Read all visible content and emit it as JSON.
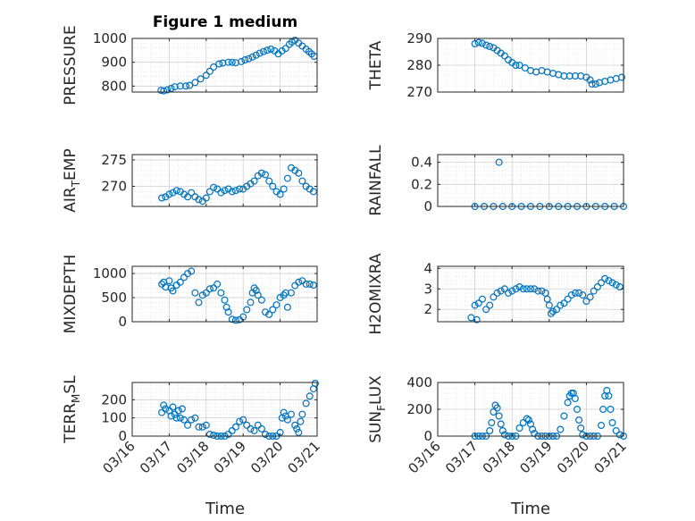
{
  "figure": {
    "title": "Figure 1 medium",
    "xlabel": "Time",
    "xticks": [
      "03/16",
      "03/17",
      "03/18",
      "03/19",
      "03/20",
      "03/21"
    ],
    "marker_color": "#0072BD"
  },
  "chart_data": [
    {
      "type": "scatter",
      "ylabel_main": "PRESSURE",
      "ylabel_sub": "",
      "xlim": [
        16,
        21
      ],
      "ylim": [
        775,
        1000
      ],
      "yticks": [
        800,
        900,
        1000
      ],
      "x": [
        16.78,
        16.85,
        16.95,
        17.05,
        17.15,
        17.3,
        17.45,
        17.55,
        17.7,
        17.85,
        18.0,
        18.1,
        18.2,
        18.35,
        18.45,
        18.6,
        18.7,
        18.8,
        18.95,
        19.05,
        19.15,
        19.25,
        19.35,
        19.45,
        19.55,
        19.65,
        19.75,
        19.85,
        19.95,
        20.05,
        20.15,
        20.25,
        20.32,
        20.4,
        20.5,
        20.6,
        20.7,
        20.78,
        20.85,
        20.92
      ],
      "y": [
        782,
        780,
        784,
        790,
        797,
        800,
        800,
        803,
        815,
        830,
        845,
        862,
        880,
        893,
        897,
        900,
        900,
        898,
        903,
        910,
        915,
        922,
        930,
        938,
        945,
        950,
        955,
        948,
        935,
        948,
        958,
        975,
        985,
        992,
        980,
        968,
        955,
        945,
        935,
        925
      ]
    },
    {
      "type": "scatter",
      "ylabel_main": "THETA",
      "ylabel_sub": "",
      "xlim": [
        16,
        21
      ],
      "ylim": [
        270,
        290
      ],
      "yticks": [
        270,
        280,
        290
      ],
      "x": [
        17.0,
        17.1,
        17.2,
        17.3,
        17.4,
        17.5,
        17.6,
        17.7,
        17.8,
        17.9,
        18.0,
        18.1,
        18.2,
        18.35,
        18.5,
        18.65,
        18.8,
        18.95,
        19.1,
        19.25,
        19.4,
        19.55,
        19.7,
        19.85,
        20.0,
        20.1,
        20.15,
        20.25,
        20.35,
        20.5,
        20.65,
        20.8,
        20.95
      ],
      "y": [
        288,
        288.5,
        288.2,
        287.5,
        287,
        286.5,
        285.5,
        284.5,
        283.5,
        282,
        281,
        280,
        280,
        279,
        278,
        277.5,
        278,
        277.5,
        277,
        276.5,
        276,
        276,
        276,
        276,
        275.5,
        274.5,
        273,
        273,
        273.5,
        274,
        274.5,
        275,
        275.5
      ]
    },
    {
      "type": "scatter",
      "ylabel_main": "AIR",
      "ylabel_sub": "T",
      "ylabel_tail": "EMP",
      "xlim": [
        16,
        21
      ],
      "ylim": [
        266.2,
        276
      ],
      "yticks": [
        270,
        275
      ],
      "x": [
        16.8,
        16.9,
        17.0,
        17.1,
        17.2,
        17.3,
        17.4,
        17.5,
        17.6,
        17.7,
        17.8,
        17.9,
        18.0,
        18.1,
        18.2,
        18.3,
        18.4,
        18.5,
        18.6,
        18.7,
        18.8,
        18.9,
        19.0,
        19.1,
        19.2,
        19.3,
        19.4,
        19.5,
        19.6,
        19.7,
        19.8,
        19.9,
        20.0,
        20.1,
        20.2,
        20.3,
        20.4,
        20.5,
        20.6,
        20.7,
        20.8,
        20.9
      ],
      "y": [
        267.8,
        268.0,
        268.5,
        268.8,
        269.2,
        269.0,
        268.5,
        268.0,
        268.8,
        268.0,
        267.5,
        267.2,
        267.8,
        269.0,
        269.8,
        269.5,
        268.8,
        269.2,
        269.5,
        269.0,
        269.2,
        269.5,
        269.5,
        270.0,
        270.5,
        271.0,
        272.0,
        272.5,
        272.2,
        271.0,
        270.0,
        269.0,
        268.5,
        269.5,
        271.5,
        273.5,
        273.0,
        272.5,
        271.0,
        270.0,
        269.5,
        269.0
      ]
    },
    {
      "type": "scatter",
      "ylabel_main": "RAINFALL",
      "ylabel_sub": "",
      "xlim": [
        16,
        21
      ],
      "ylim": [
        0,
        0.47
      ],
      "yticks": [
        0,
        0.2,
        0.4
      ],
      "x": [
        17.0,
        17.25,
        17.5,
        17.75,
        18.0,
        18.25,
        18.5,
        18.75,
        19.0,
        19.25,
        19.5,
        19.75,
        20.0,
        20.25,
        20.5,
        20.75,
        21.0,
        17.65
      ],
      "y": [
        0,
        0,
        0,
        0,
        0,
        0,
        0,
        0,
        0,
        0,
        0,
        0,
        0,
        0,
        0,
        0,
        0,
        0.4
      ]
    },
    {
      "type": "scatter",
      "ylabel_main": "MIXDEPTH",
      "ylabel_sub": "",
      "xlim": [
        16,
        21
      ],
      "ylim": [
        0,
        1150
      ],
      "yticks": [
        0,
        500,
        1000
      ],
      "x": [
        16.8,
        16.85,
        16.9,
        17.0,
        17.05,
        17.1,
        17.2,
        17.3,
        17.4,
        17.5,
        17.6,
        17.7,
        17.8,
        17.9,
        18.0,
        18.1,
        18.2,
        18.3,
        18.4,
        18.5,
        18.55,
        18.6,
        18.7,
        18.8,
        18.9,
        19.0,
        19.1,
        19.2,
        19.25,
        19.3,
        19.35,
        19.4,
        19.5,
        19.6,
        19.7,
        19.8,
        19.9,
        20.0,
        20.1,
        20.15,
        20.2,
        20.3,
        20.4,
        20.5,
        20.6,
        20.7,
        20.8,
        20.9
      ],
      "y": [
        780,
        820,
        720,
        850,
        700,
        640,
        760,
        820,
        920,
        1000,
        1050,
        600,
        400,
        550,
        600,
        680,
        700,
        780,
        600,
        450,
        300,
        200,
        50,
        30,
        40,
        100,
        250,
        400,
        600,
        700,
        650,
        550,
        450,
        200,
        150,
        250,
        350,
        500,
        550,
        600,
        300,
        600,
        750,
        820,
        850,
        780,
        780,
        760
      ]
    },
    {
      "type": "scatter",
      "ylabel_main": "H2OMIXRA",
      "ylabel_sub": "",
      "xlim": [
        16,
        21
      ],
      "ylim": [
        1.4,
        4.1
      ],
      "yticks": [
        2,
        3,
        4
      ],
      "x": [
        16.9,
        17.0,
        17.05,
        17.1,
        17.2,
        17.3,
        17.4,
        17.5,
        17.6,
        17.7,
        17.8,
        17.9,
        18.0,
        18.1,
        18.2,
        18.3,
        18.4,
        18.5,
        18.6,
        18.7,
        18.8,
        18.9,
        18.95,
        19.0,
        19.05,
        19.1,
        19.2,
        19.3,
        19.4,
        19.5,
        19.6,
        19.7,
        19.8,
        19.9,
        20.0,
        20.1,
        20.2,
        20.3,
        20.4,
        20.5,
        20.6,
        20.7,
        20.8,
        20.9
      ],
      "y": [
        1.6,
        2.2,
        1.5,
        2.3,
        2.5,
        2.0,
        2.2,
        2.6,
        2.8,
        2.9,
        3.0,
        2.8,
        2.9,
        3.0,
        3.1,
        3.0,
        3.0,
        3.0,
        3.0,
        2.9,
        2.9,
        2.8,
        2.5,
        2.2,
        1.8,
        1.9,
        2.0,
        2.2,
        2.3,
        2.5,
        2.7,
        2.8,
        2.8,
        2.7,
        2.4,
        2.6,
        2.9,
        3.1,
        3.3,
        3.5,
        3.4,
        3.3,
        3.2,
        3.1
      ]
    },
    {
      "type": "scatter",
      "ylabel_main": "TERR",
      "ylabel_sub": "M",
      "ylabel_tail": "SL",
      "xlim": [
        16,
        21
      ],
      "ylim": [
        0,
        295
      ],
      "yticks": [
        0,
        100,
        200
      ],
      "x": [
        16.8,
        16.85,
        16.9,
        17.0,
        17.05,
        17.1,
        17.15,
        17.2,
        17.25,
        17.3,
        17.35,
        17.4,
        17.5,
        17.6,
        17.7,
        17.8,
        17.9,
        18.0,
        18.1,
        18.2,
        18.3,
        18.4,
        18.5,
        18.6,
        18.7,
        18.8,
        18.9,
        19.0,
        19.1,
        19.2,
        19.3,
        19.4,
        19.5,
        19.6,
        19.7,
        19.8,
        19.9,
        20.0,
        20.05,
        20.1,
        20.15,
        20.2,
        20.3,
        20.4,
        20.45,
        20.5,
        20.55,
        20.6,
        20.7,
        20.8,
        20.9,
        20.95
      ],
      "y": [
        130,
        170,
        150,
        140,
        110,
        160,
        120,
        100,
        140,
        100,
        150,
        90,
        60,
        90,
        100,
        50,
        50,
        60,
        10,
        5,
        0,
        0,
        0,
        10,
        30,
        50,
        80,
        90,
        60,
        40,
        30,
        60,
        40,
        10,
        0,
        0,
        0,
        20,
        100,
        130,
        110,
        90,
        120,
        60,
        40,
        20,
        80,
        120,
        180,
        220,
        260,
        290
      ]
    },
    {
      "type": "scatter",
      "ylabel_main": "SUN",
      "ylabel_sub": "F",
      "ylabel_tail": "LUX",
      "xlim": [
        16,
        21
      ],
      "ylim": [
        0,
        400
      ],
      "yticks": [
        0,
        200,
        400
      ],
      "x": [
        17.0,
        17.1,
        17.2,
        17.3,
        17.4,
        17.45,
        17.5,
        17.55,
        17.6,
        17.65,
        17.7,
        17.75,
        17.8,
        17.9,
        18.0,
        18.1,
        18.2,
        18.3,
        18.4,
        18.45,
        18.5,
        18.55,
        18.6,
        18.7,
        18.8,
        18.9,
        19.0,
        19.1,
        19.2,
        19.3,
        19.4,
        19.5,
        19.55,
        19.6,
        19.65,
        19.7,
        19.75,
        19.8,
        19.85,
        19.9,
        20.0,
        20.1,
        20.2,
        20.3,
        20.4,
        20.45,
        20.5,
        20.55,
        20.6,
        20.65,
        20.7,
        20.8,
        20.9,
        21.0
      ],
      "y": [
        0,
        0,
        0,
        0,
        40,
        100,
        180,
        230,
        210,
        150,
        90,
        40,
        10,
        0,
        0,
        0,
        60,
        100,
        130,
        120,
        90,
        50,
        20,
        0,
        0,
        0,
        0,
        0,
        0,
        50,
        150,
        250,
        300,
        320,
        320,
        280,
        200,
        120,
        60,
        10,
        0,
        0,
        0,
        0,
        80,
        200,
        300,
        340,
        300,
        200,
        100,
        40,
        10,
        0
      ]
    }
  ]
}
